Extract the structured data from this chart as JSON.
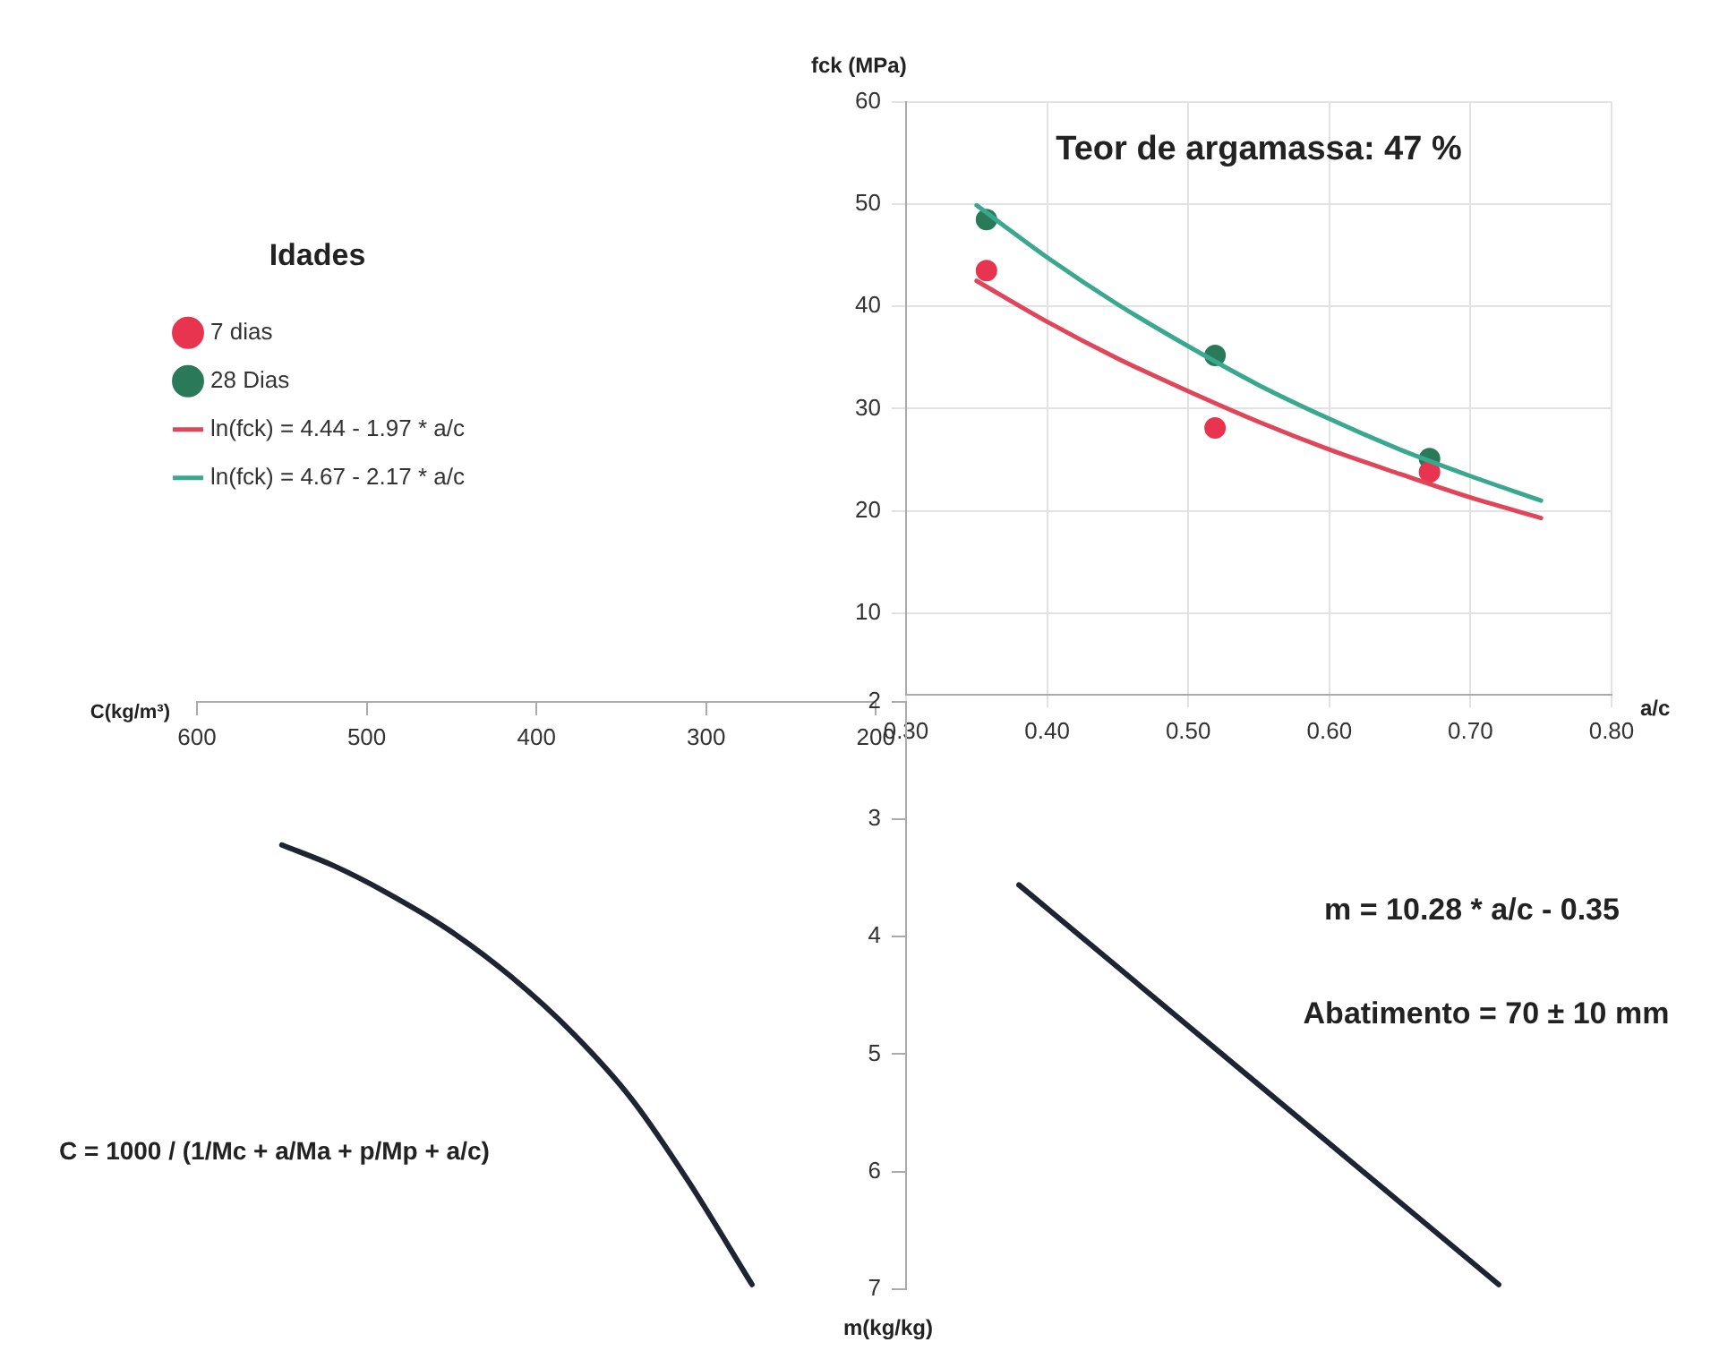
{
  "chart_data": [
    {
      "type": "scatter",
      "xlabel": "a/c",
      "ylabel": "fck (MPa)",
      "legend_title": "Idades",
      "legend": "left",
      "grid": true,
      "annotations": [
        "Teor de argamassa: 47 %"
      ],
      "xlim": [
        0.3,
        0.8
      ],
      "xticks": [
        {
          "value": 0.3,
          "label": "0.30"
        },
        {
          "value": 0.4,
          "label": "0.40"
        },
        {
          "value": 0.5,
          "label": "0.50"
        },
        {
          "value": 0.6,
          "label": "0.60"
        },
        {
          "value": 0.7,
          "label": "0.70"
        },
        {
          "value": 0.8,
          "label": "0.80"
        }
      ],
      "ylim": [
        2,
        60
      ],
      "yticks": [
        10,
        20,
        30,
        40,
        50,
        60
      ],
      "series": [
        {
          "name": "7 dias",
          "type": "scatter",
          "marker": "circle",
          "color": "#e8344e",
          "x": [
            0.357,
            0.519,
            0.671
          ],
          "values": [
            43.5,
            28.1,
            23.8
          ]
        },
        {
          "name": "28 Dias",
          "type": "scatter",
          "marker": "circle",
          "color": "#2a7a5a",
          "x": [
            0.357,
            0.519,
            0.671
          ],
          "values": [
            48.5,
            35.2,
            25.1
          ]
        },
        {
          "name": "ln(fck) = 4.44 - 1.97 * a/c",
          "type": "line",
          "marker": "none",
          "color": "#e04659",
          "x": [
            0.35,
            0.4,
            0.45,
            0.5,
            0.55,
            0.6,
            0.65,
            0.7,
            0.75
          ],
          "values": [
            42.5,
            38.5,
            34.9,
            31.7,
            28.7,
            26.0,
            23.6,
            21.3,
            19.3
          ]
        },
        {
          "name": "ln(fck) = 4.67 - 2.17 * a/c",
          "type": "line",
          "marker": "none",
          "color": "#3aa88f",
          "x": [
            0.35,
            0.4,
            0.45,
            0.5,
            0.55,
            0.6,
            0.65,
            0.7,
            0.75
          ],
          "values": [
            49.9,
            44.8,
            40.2,
            36.1,
            32.3,
            29.0,
            26.0,
            23.4,
            21.0
          ]
        }
      ]
    },
    {
      "type": "line",
      "xlabel": "C(kg/m³)",
      "tick_labels": "x",
      "annotations": [
        "C = 1000 / (1/Mc + a/Ma + p/Mp + a/c)"
      ],
      "xlim": [
        600,
        200
      ],
      "xticks": [
        600,
        500,
        400,
        300,
        200
      ],
      "ylim": [
        7,
        2
      ],
      "series": [
        {
          "color": "#1f2433",
          "x": [
            550,
            519,
            489,
            452,
            415,
            378,
            344,
            311,
            273
          ],
          "values": [
            3.22,
            3.4,
            3.62,
            3.94,
            4.34,
            4.83,
            5.38,
            6.07,
            6.96
          ]
        }
      ]
    },
    {
      "type": "line",
      "ylabel": "m(kg/kg)",
      "tick_labels": "y",
      "annotations": [
        "m = 10.28 * a/c - 0.35",
        "Abatimento = 70 ± 10 mm"
      ],
      "xlim": [
        0.3,
        0.8
      ],
      "ylim": [
        7,
        2
      ],
      "yticks": [
        2,
        3,
        4,
        5,
        6,
        7
      ],
      "series": [
        {
          "color": "#1f2433",
          "x": [
            0.38,
            0.72
          ],
          "values": [
            3.56,
            6.96
          ]
        }
      ]
    }
  ]
}
